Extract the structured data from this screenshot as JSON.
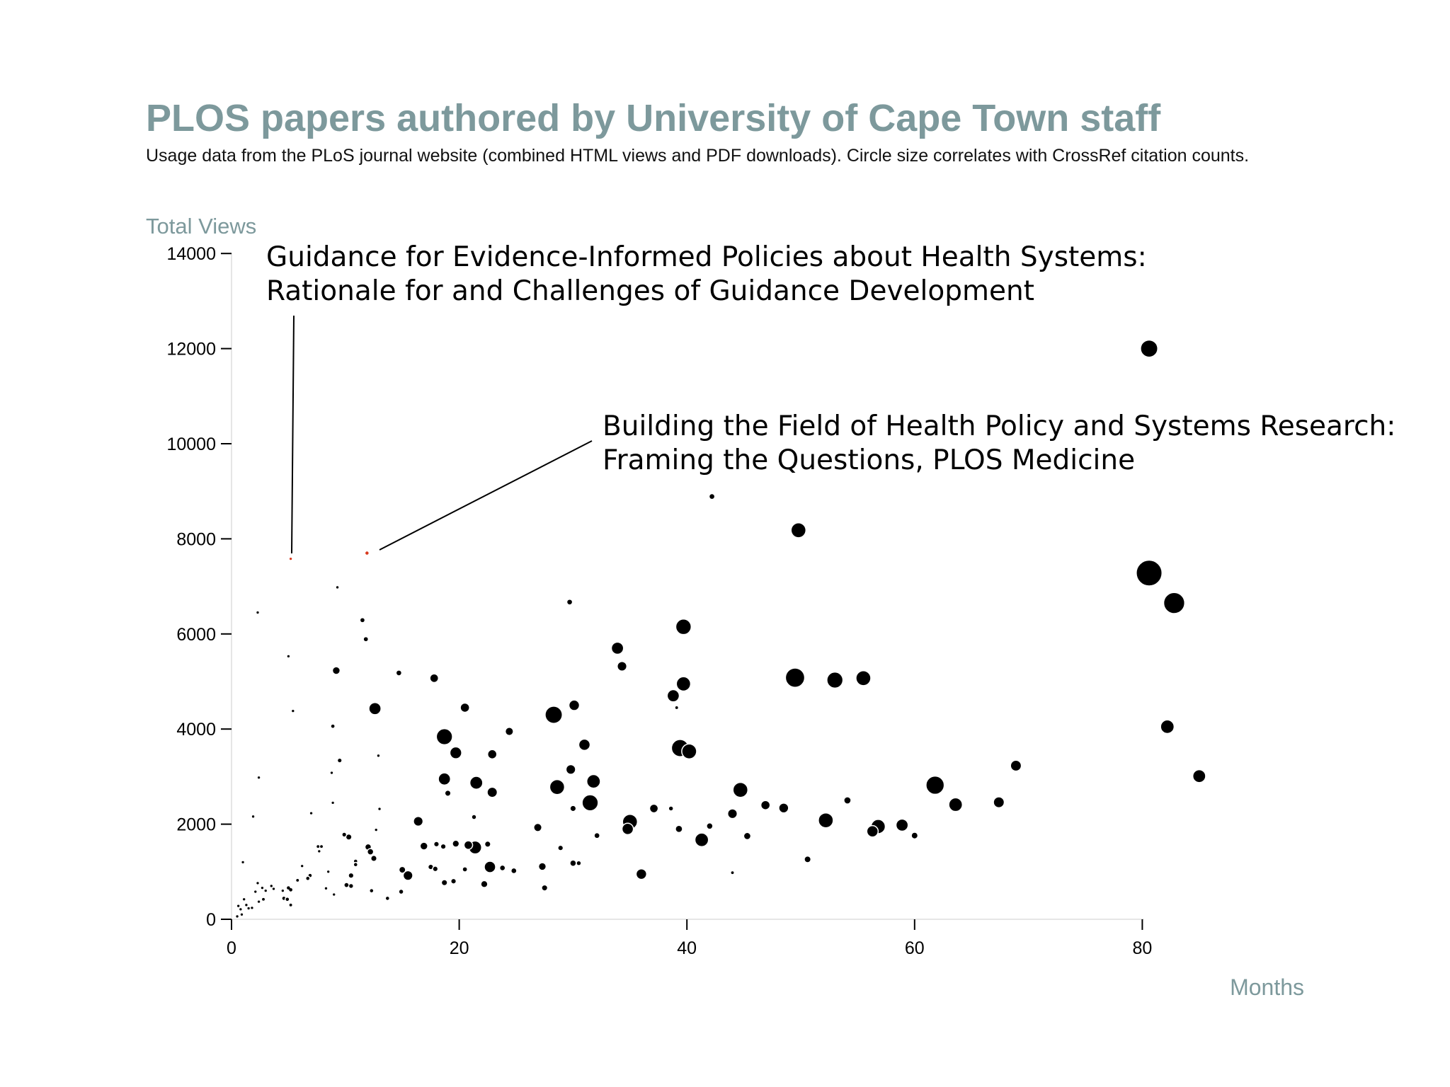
{
  "chart_data": {
    "type": "scatter",
    "title": "PLOS papers authored by University of Cape Town staff",
    "subtitle": "Usage data from the PLoS journal website (combined HTML views and PDF downloads). Circle size correlates with CrossRef citation counts.",
    "xlabel": "Months",
    "ylabel": "Total Views",
    "xlim": [
      0,
      94
    ],
    "ylim": [
      0,
      14000
    ],
    "xticks": [
      "0",
      "20",
      "40",
      "60",
      "80"
    ],
    "yticks": [
      "0",
      "2000",
      "4000",
      "6000",
      "8000",
      "10000",
      "12000",
      "14000"
    ],
    "size_variable": "CrossRef citation count (relative)",
    "colors": {
      "default": "#000000",
      "highlight": "#d93a1e",
      "title": "#7d999c",
      "axis": "#000000"
    },
    "annotations": [
      {
        "lines": [
          "Guidance for Evidence-Informed Policies about Health Systems:",
          "Rationale for and Challenges of Guidance Development"
        ],
        "x": 5.2,
        "y": 7580
      },
      {
        "lines": [
          "Building the Field of Health Policy and Systems Research:",
          "Framing the Questions, PLOS Medicine"
        ],
        "x": 11.9,
        "y": 7700
      }
    ],
    "points": [
      {
        "x": 80.6,
        "y": 12000,
        "s": 8,
        "h": false
      },
      {
        "x": 80.6,
        "y": 7280,
        "s": 18,
        "h": false
      },
      {
        "x": 82.8,
        "y": 6650,
        "s": 12,
        "h": false
      },
      {
        "x": 82.2,
        "y": 4050,
        "s": 5,
        "h": false
      },
      {
        "x": 85.0,
        "y": 3010,
        "s": 4.5,
        "h": false
      },
      {
        "x": 49.8,
        "y": 8180,
        "s": 6,
        "h": false
      },
      {
        "x": 42.2,
        "y": 8890,
        "s": 0.9,
        "h": false
      },
      {
        "x": 49.5,
        "y": 5080,
        "s": 10,
        "h": false
      },
      {
        "x": 53.0,
        "y": 5030,
        "s": 7,
        "h": false
      },
      {
        "x": 55.5,
        "y": 5070,
        "s": 6,
        "h": false
      },
      {
        "x": 39.7,
        "y": 6150,
        "s": 6.5,
        "h": false
      },
      {
        "x": 39.7,
        "y": 4950,
        "s": 5.5,
        "h": false
      },
      {
        "x": 38.8,
        "y": 4700,
        "s": 4,
        "h": false
      },
      {
        "x": 39.1,
        "y": 4450,
        "s": 0.2,
        "h": false
      },
      {
        "x": 39.4,
        "y": 3600,
        "s": 8,
        "h": false
      },
      {
        "x": 40.2,
        "y": 3530,
        "s": 6,
        "h": false
      },
      {
        "x": 33.9,
        "y": 5700,
        "s": 4,
        "h": false
      },
      {
        "x": 34.3,
        "y": 5320,
        "s": 2.5,
        "h": false
      },
      {
        "x": 29.7,
        "y": 6670,
        "s": 0.9,
        "h": false
      },
      {
        "x": 28.3,
        "y": 4300,
        "s": 8,
        "h": false
      },
      {
        "x": 30.1,
        "y": 4500,
        "s": 3,
        "h": false
      },
      {
        "x": 31.0,
        "y": 3670,
        "s": 3.5,
        "h": false
      },
      {
        "x": 29.8,
        "y": 3150,
        "s": 2.5,
        "h": false
      },
      {
        "x": 31.8,
        "y": 2900,
        "s": 5,
        "h": false
      },
      {
        "x": 28.6,
        "y": 2780,
        "s": 6,
        "h": false
      },
      {
        "x": 31.5,
        "y": 2450,
        "s": 7,
        "h": false
      },
      {
        "x": 30.0,
        "y": 2330,
        "s": 1,
        "h": false
      },
      {
        "x": 26.9,
        "y": 1930,
        "s": 1.8,
        "h": false
      },
      {
        "x": 28.9,
        "y": 1500,
        "s": 0.8,
        "h": false
      },
      {
        "x": 30.0,
        "y": 1180,
        "s": 1.1,
        "h": false
      },
      {
        "x": 30.5,
        "y": 1180,
        "s": 0.4,
        "h": false
      },
      {
        "x": 27.3,
        "y": 1110,
        "s": 1.6,
        "h": false
      },
      {
        "x": 27.5,
        "y": 660,
        "s": 1,
        "h": false
      },
      {
        "x": 32.1,
        "y": 1760,
        "s": 0.9,
        "h": false
      },
      {
        "x": 35.0,
        "y": 2050,
        "s": 6,
        "h": false
      },
      {
        "x": 34.8,
        "y": 1900,
        "s": 3.5,
        "h": false
      },
      {
        "x": 36.0,
        "y": 950,
        "s": 3,
        "h": false
      },
      {
        "x": 37.1,
        "y": 2330,
        "s": 2,
        "h": false
      },
      {
        "x": 38.6,
        "y": 2330,
        "s": 0.4,
        "h": false
      },
      {
        "x": 39.3,
        "y": 1900,
        "s": 1.4,
        "h": false
      },
      {
        "x": 41.3,
        "y": 1670,
        "s": 5,
        "h": false
      },
      {
        "x": 42.0,
        "y": 1960,
        "s": 1.1,
        "h": false
      },
      {
        "x": 44.0,
        "y": 2220,
        "s": 2.5,
        "h": false
      },
      {
        "x": 44.7,
        "y": 2720,
        "s": 6,
        "h": false
      },
      {
        "x": 45.3,
        "y": 1750,
        "s": 1.4,
        "h": false
      },
      {
        "x": 44.0,
        "y": 980,
        "s": 0.2,
        "h": false
      },
      {
        "x": 46.9,
        "y": 2400,
        "s": 2.3,
        "h": false
      },
      {
        "x": 48.5,
        "y": 2340,
        "s": 2.6,
        "h": false
      },
      {
        "x": 50.6,
        "y": 1260,
        "s": 1.2,
        "h": false
      },
      {
        "x": 52.2,
        "y": 2080,
        "s": 6,
        "h": false
      },
      {
        "x": 54.1,
        "y": 2500,
        "s": 1.4,
        "h": false
      },
      {
        "x": 56.8,
        "y": 1950,
        "s": 5.5,
        "h": false
      },
      {
        "x": 56.3,
        "y": 1850,
        "s": 3.5,
        "h": false
      },
      {
        "x": 58.9,
        "y": 1980,
        "s": 4,
        "h": false
      },
      {
        "x": 60.0,
        "y": 1760,
        "s": 1.2,
        "h": false
      },
      {
        "x": 61.8,
        "y": 2820,
        "s": 9,
        "h": false
      },
      {
        "x": 63.6,
        "y": 2410,
        "s": 5,
        "h": false
      },
      {
        "x": 67.4,
        "y": 2460,
        "s": 3.2,
        "h": false
      },
      {
        "x": 68.9,
        "y": 3230,
        "s": 3.2,
        "h": false
      },
      {
        "x": 22.9,
        "y": 3470,
        "s": 2.3,
        "h": false
      },
      {
        "x": 24.4,
        "y": 3950,
        "s": 1.8,
        "h": false
      },
      {
        "x": 20.5,
        "y": 4450,
        "s": 2.3,
        "h": false
      },
      {
        "x": 17.8,
        "y": 5070,
        "s": 2,
        "h": false
      },
      {
        "x": 18.7,
        "y": 3840,
        "s": 7,
        "h": false
      },
      {
        "x": 19.7,
        "y": 3500,
        "s": 3.8,
        "h": false
      },
      {
        "x": 18.7,
        "y": 2950,
        "s": 4,
        "h": false
      },
      {
        "x": 19.0,
        "y": 2650,
        "s": 1,
        "h": false
      },
      {
        "x": 21.5,
        "y": 2870,
        "s": 4.5,
        "h": false
      },
      {
        "x": 22.9,
        "y": 2670,
        "s": 2.8,
        "h": false
      },
      {
        "x": 21.3,
        "y": 2150,
        "s": 0.4,
        "h": false
      },
      {
        "x": 21.4,
        "y": 1510,
        "s": 4.5,
        "h": false
      },
      {
        "x": 20.8,
        "y": 1560,
        "s": 2,
        "h": false
      },
      {
        "x": 22.5,
        "y": 1580,
        "s": 1,
        "h": false
      },
      {
        "x": 19.7,
        "y": 1590,
        "s": 1.3,
        "h": false
      },
      {
        "x": 18.0,
        "y": 1580,
        "s": 0.8,
        "h": false
      },
      {
        "x": 18.6,
        "y": 1530,
        "s": 0.8,
        "h": false
      },
      {
        "x": 16.9,
        "y": 1540,
        "s": 1.6,
        "h": false
      },
      {
        "x": 22.7,
        "y": 1100,
        "s": 3.5,
        "h": false
      },
      {
        "x": 23.8,
        "y": 1080,
        "s": 0.9,
        "h": false
      },
      {
        "x": 24.8,
        "y": 1020,
        "s": 0.9,
        "h": false
      },
      {
        "x": 20.5,
        "y": 1050,
        "s": 0.7,
        "h": false
      },
      {
        "x": 17.5,
        "y": 1100,
        "s": 0.8,
        "h": false
      },
      {
        "x": 17.9,
        "y": 1060,
        "s": 0.8,
        "h": false
      },
      {
        "x": 19.5,
        "y": 800,
        "s": 0.8,
        "h": false
      },
      {
        "x": 18.7,
        "y": 770,
        "s": 1,
        "h": false
      },
      {
        "x": 22.2,
        "y": 740,
        "s": 1.3,
        "h": false
      },
      {
        "x": 15.5,
        "y": 920,
        "s": 2.5,
        "h": false
      },
      {
        "x": 15.0,
        "y": 1040,
        "s": 1.2,
        "h": false
      },
      {
        "x": 16.4,
        "y": 2060,
        "s": 2.5,
        "h": false
      },
      {
        "x": 12.6,
        "y": 4430,
        "s": 4,
        "h": false
      },
      {
        "x": 14.7,
        "y": 5180,
        "s": 0.9,
        "h": false
      },
      {
        "x": 9.2,
        "y": 5230,
        "s": 1.6,
        "h": false
      },
      {
        "x": 11.5,
        "y": 6290,
        "s": 0.7,
        "h": false
      },
      {
        "x": 11.8,
        "y": 5890,
        "s": 0.7,
        "h": false
      },
      {
        "x": 9.5,
        "y": 3340,
        "s": 0.6,
        "h": false
      },
      {
        "x": 8.9,
        "y": 4060,
        "s": 0.3,
        "h": false
      },
      {
        "x": 9.9,
        "y": 1780,
        "s": 0.6,
        "h": false
      },
      {
        "x": 10.3,
        "y": 1730,
        "s": 1,
        "h": false
      },
      {
        "x": 12.0,
        "y": 1520,
        "s": 1.1,
        "h": false
      },
      {
        "x": 12.2,
        "y": 1420,
        "s": 1.1,
        "h": false
      },
      {
        "x": 12.5,
        "y": 1280,
        "s": 1,
        "h": false
      },
      {
        "x": 10.9,
        "y": 1220,
        "s": 0.5,
        "h": false
      },
      {
        "x": 10.9,
        "y": 1150,
        "s": 0.5,
        "h": false
      },
      {
        "x": 10.5,
        "y": 920,
        "s": 0.8,
        "h": false
      },
      {
        "x": 10.5,
        "y": 700,
        "s": 0.4,
        "h": false
      },
      {
        "x": 10.1,
        "y": 720,
        "s": 0.7,
        "h": false
      },
      {
        "x": 12.3,
        "y": 600,
        "s": 0.5,
        "h": false
      },
      {
        "x": 13.7,
        "y": 440,
        "s": 0.5,
        "h": false
      },
      {
        "x": 14.9,
        "y": 580,
        "s": 0.4,
        "h": false
      },
      {
        "x": 7.6,
        "y": 1530,
        "s": 0.2,
        "h": false
      },
      {
        "x": 7.9,
        "y": 1530,
        "s": 0.2,
        "h": false
      },
      {
        "x": 7.7,
        "y": 1430,
        "s": 0.15,
        "h": false
      },
      {
        "x": 6.9,
        "y": 920,
        "s": 0.5,
        "h": false
      },
      {
        "x": 6.7,
        "y": 860,
        "s": 0.5,
        "h": false
      },
      {
        "x": 5.8,
        "y": 820,
        "s": 0.2,
        "h": false
      },
      {
        "x": 5.0,
        "y": 660,
        "s": 0.5,
        "h": false
      },
      {
        "x": 5.2,
        "y": 620,
        "s": 0.3,
        "h": false
      },
      {
        "x": 4.6,
        "y": 440,
        "s": 0.5,
        "h": false
      },
      {
        "x": 4.9,
        "y": 420,
        "s": 0.5,
        "h": false
      },
      {
        "x": 5.2,
        "y": 300,
        "s": 0.2,
        "h": false
      },
      {
        "x": 4.5,
        "y": 600,
        "s": 0.15,
        "h": false
      },
      {
        "x": 3.5,
        "y": 700,
        "s": 0.15,
        "h": false
      },
      {
        "x": 3.7,
        "y": 640,
        "s": 0.15,
        "h": false
      },
      {
        "x": 3.0,
        "y": 600,
        "s": 0.15,
        "h": false
      },
      {
        "x": 2.7,
        "y": 660,
        "s": 0.15,
        "h": false
      },
      {
        "x": 2.3,
        "y": 760,
        "s": 0.15,
        "h": false
      },
      {
        "x": 2.1,
        "y": 580,
        "s": 0.15,
        "h": false
      },
      {
        "x": 2.8,
        "y": 420,
        "s": 0.2,
        "h": false
      },
      {
        "x": 2.4,
        "y": 370,
        "s": 0.15,
        "h": false
      },
      {
        "x": 1.8,
        "y": 240,
        "s": 0.15,
        "h": false
      },
      {
        "x": 1.5,
        "y": 230,
        "s": 0.15,
        "h": false
      },
      {
        "x": 1.3,
        "y": 300,
        "s": 0.15,
        "h": false
      },
      {
        "x": 1.1,
        "y": 420,
        "s": 0.15,
        "h": false
      },
      {
        "x": 0.8,
        "y": 210,
        "s": 0.15,
        "h": false
      },
      {
        "x": 0.6,
        "y": 280,
        "s": 0.15,
        "h": false
      },
      {
        "x": 0.9,
        "y": 100,
        "s": 0.15,
        "h": false
      },
      {
        "x": 0.5,
        "y": 60,
        "s": 0.15,
        "h": false
      },
      {
        "x": 1.0,
        "y": 1200,
        "s": 0.15,
        "h": false
      },
      {
        "x": 1.9,
        "y": 2160,
        "s": 0.15,
        "h": false
      },
      {
        "x": 2.4,
        "y": 2980,
        "s": 0.15,
        "h": false
      },
      {
        "x": 2.3,
        "y": 6450,
        "s": 0.15,
        "h": false
      },
      {
        "x": 5.0,
        "y": 5530,
        "s": 0.15,
        "h": false
      },
      {
        "x": 5.4,
        "y": 4380,
        "s": 0.15,
        "h": false
      },
      {
        "x": 9.3,
        "y": 6980,
        "s": 0.15,
        "h": false
      },
      {
        "x": 8.8,
        "y": 3080,
        "s": 0.15,
        "h": false
      },
      {
        "x": 8.9,
        "y": 2450,
        "s": 0.15,
        "h": false
      },
      {
        "x": 7.0,
        "y": 2230,
        "s": 0.15,
        "h": false
      },
      {
        "x": 12.7,
        "y": 1880,
        "s": 0.15,
        "h": false
      },
      {
        "x": 12.9,
        "y": 3440,
        "s": 0.15,
        "h": false
      },
      {
        "x": 13.0,
        "y": 2320,
        "s": 0.15,
        "h": false
      },
      {
        "x": 8.5,
        "y": 1000,
        "s": 0.15,
        "h": false
      },
      {
        "x": 9.0,
        "y": 520,
        "s": 0.15,
        "h": false
      },
      {
        "x": 8.3,
        "y": 650,
        "s": 0.15,
        "h": false
      },
      {
        "x": 6.2,
        "y": 1120,
        "s": 0.15,
        "h": false
      },
      {
        "x": 5.2,
        "y": 7580,
        "s": 0.15,
        "h": true
      },
      {
        "x": 11.9,
        "y": 7700,
        "s": 0.5,
        "h": true
      }
    ]
  }
}
